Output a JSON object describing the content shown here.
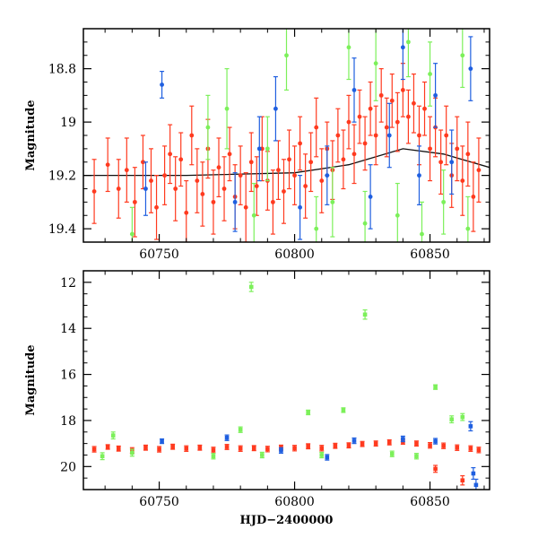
{
  "chart_data": [
    {
      "type": "scatter",
      "panel": "top",
      "xlabel": "",
      "ylabel": "Magnitude",
      "xlim": [
        60722,
        60872
      ],
      "ylim": [
        19.45,
        18.65
      ],
      "y_inverted": true,
      "xticks": [
        60750,
        60800,
        60850
      ],
      "xtick_labels": [
        "60750",
        "60800",
        "60850"
      ],
      "yticks": [
        18.8,
        19,
        19.2,
        19.4
      ],
      "ytick_labels": [
        "18.8",
        "19",
        "19.2",
        "19.4"
      ],
      "grid": false,
      "legend": "none",
      "series": [
        {
          "color": "#ff3a1f",
          "points": [
            [
              60726,
              19.26,
              0.12
            ],
            [
              60731,
              19.16,
              0.1
            ],
            [
              60735,
              19.25,
              0.11
            ],
            [
              60738,
              19.18,
              0.12
            ],
            [
              60741,
              19.3,
              0.13
            ],
            [
              60744,
              19.15,
              0.1
            ],
            [
              60747,
              19.22,
              0.12
            ],
            [
              60749,
              19.32,
              0.12
            ],
            [
              60752,
              19.2,
              0.11
            ],
            [
              60754,
              19.12,
              0.11
            ],
            [
              60756,
              19.25,
              0.12
            ],
            [
              60758,
              19.14,
              0.1
            ],
            [
              60760,
              19.34,
              0.12
            ],
            [
              60762,
              19.05,
              0.11
            ],
            [
              60764,
              19.22,
              0.12
            ],
            [
              60766,
              19.27,
              0.12
            ],
            [
              60768,
              19.1,
              0.11
            ],
            [
              60770,
              19.3,
              0.12
            ],
            [
              60772,
              19.17,
              0.11
            ],
            [
              60774,
              19.25,
              0.12
            ],
            [
              60776,
              19.12,
              0.1
            ],
            [
              60778,
              19.28,
              0.12
            ],
            [
              60780,
              19.2,
              0.11
            ],
            [
              60782,
              19.32,
              0.13
            ],
            [
              60784,
              19.15,
              0.11
            ],
            [
              60786,
              19.24,
              0.11
            ],
            [
              60788,
              19.1,
              0.12
            ],
            [
              60790,
              19.22,
              0.11
            ],
            [
              60792,
              19.3,
              0.12
            ],
            [
              60794,
              19.18,
              0.11
            ],
            [
              60796,
              19.26,
              0.12
            ],
            [
              60798,
              19.14,
              0.11
            ],
            [
              60800,
              19.2,
              0.11
            ],
            [
              60802,
              19.08,
              0.1
            ],
            [
              60804,
              19.24,
              0.12
            ],
            [
              60806,
              19.15,
              0.11
            ],
            [
              60808,
              19.02,
              0.11
            ],
            [
              60810,
              19.22,
              0.12
            ],
            [
              60812,
              19.1,
              0.1
            ],
            [
              60814,
              19.18,
              0.11
            ],
            [
              60816,
              19.05,
              0.1
            ],
            [
              60818,
              19.14,
              0.11
            ],
            [
              60820,
              19.0,
              0.1
            ],
            [
              60822,
              19.12,
              0.11
            ],
            [
              60824,
              18.98,
              0.1
            ],
            [
              60826,
              19.08,
              0.1
            ],
            [
              60828,
              18.95,
              0.1
            ],
            [
              60830,
              19.05,
              0.11
            ],
            [
              60832,
              18.9,
              0.1
            ],
            [
              60834,
              19.02,
              0.11
            ],
            [
              60836,
              18.92,
              0.1
            ],
            [
              60838,
              19.0,
              0.11
            ],
            [
              60840,
              18.88,
              0.1
            ],
            [
              60842,
              18.98,
              0.1
            ],
            [
              60844,
              18.93,
              0.11
            ],
            [
              60846,
              19.05,
              0.11
            ],
            [
              60848,
              18.95,
              0.1
            ],
            [
              60850,
              19.1,
              0.12
            ],
            [
              60852,
              19.02,
              0.11
            ],
            [
              60854,
              19.15,
              0.12
            ],
            [
              60856,
              19.05,
              0.11
            ],
            [
              60858,
              19.2,
              0.12
            ],
            [
              60860,
              19.1,
              0.12
            ],
            [
              60862,
              19.22,
              0.13
            ],
            [
              60864,
              19.12,
              0.12
            ],
            [
              60866,
              19.28,
              0.13
            ],
            [
              60868,
              19.18,
              0.12
            ]
          ]
        },
        {
          "color": "#7cf05a",
          "points": [
            [
              60740,
              19.42,
              0.1
            ],
            [
              60768,
              19.02,
              0.12
            ],
            [
              60775,
              18.95,
              0.15
            ],
            [
              60785,
              19.35,
              0.12
            ],
            [
              60790,
              19.1,
              0.12
            ],
            [
              60797,
              18.75,
              0.13
            ],
            [
              60808,
              19.4,
              0.12
            ],
            [
              60814,
              19.3,
              0.13
            ],
            [
              60820,
              18.72,
              0.12
            ],
            [
              60826,
              19.38,
              0.12
            ],
            [
              60830,
              18.78,
              0.14
            ],
            [
              60838,
              19.35,
              0.12
            ],
            [
              60842,
              18.7,
              0.13
            ],
            [
              60847,
              19.42,
              0.12
            ],
            [
              60850,
              18.82,
              0.12
            ],
            [
              60855,
              19.3,
              0.12
            ],
            [
              60862,
              18.75,
              0.12
            ],
            [
              60864,
              19.4,
              0.12
            ]
          ]
        },
        {
          "color": "#1f5fe0",
          "points": [
            [
              60751,
              18.86,
              0.05
            ],
            [
              60745,
              19.25,
              0.1
            ],
            [
              60778,
              19.3,
              0.11
            ],
            [
              60787,
              19.1,
              0.12
            ],
            [
              60793,
              18.95,
              0.12
            ],
            [
              60802,
              19.32,
              0.12
            ],
            [
              60812,
              19.2,
              0.11
            ],
            [
              60822,
              18.88,
              0.12
            ],
            [
              60828,
              19.28,
              0.12
            ],
            [
              60835,
              19.05,
              0.12
            ],
            [
              60840,
              18.72,
              0.12
            ],
            [
              60846,
              19.2,
              0.11
            ],
            [
              60852,
              18.9,
              0.12
            ],
            [
              60858,
              19.15,
              0.12
            ],
            [
              60865,
              18.8,
              0.12
            ]
          ]
        }
      ],
      "trend": {
        "color": "#111111",
        "points": [
          [
            60722,
            19.2
          ],
          [
            60760,
            19.2
          ],
          [
            60800,
            19.19
          ],
          [
            60820,
            19.16
          ],
          [
            60840,
            19.1
          ],
          [
            60855,
            19.12
          ],
          [
            60872,
            19.17
          ]
        ]
      }
    },
    {
      "type": "scatter",
      "panel": "bottom",
      "xlabel": "HJD−2400000",
      "ylabel": "Magnitude",
      "xlim": [
        60722,
        60872
      ],
      "ylim": [
        21.0,
        11.5
      ],
      "y_inverted": true,
      "xticks": [
        60750,
        60800,
        60850
      ],
      "xtick_labels": [
        "60750",
        "60800",
        "60850"
      ],
      "yticks": [
        12,
        14,
        16,
        18,
        20
      ],
      "ytick_labels": [
        "12",
        "14",
        "16",
        "18",
        "20"
      ],
      "grid": false,
      "legend": "none",
      "series": [
        {
          "color": "#ff3a1f",
          "points": [
            [
              60726,
              19.25,
              0.12
            ],
            [
              60731,
              19.15,
              0.1
            ],
            [
              60735,
              19.22,
              0.11
            ],
            [
              60740,
              19.3,
              0.12
            ],
            [
              60745,
              19.18,
              0.11
            ],
            [
              60750,
              19.25,
              0.12
            ],
            [
              60755,
              19.14,
              0.11
            ],
            [
              60760,
              19.22,
              0.12
            ],
            [
              60765,
              19.18,
              0.11
            ],
            [
              60770,
              19.28,
              0.12
            ],
            [
              60775,
              19.15,
              0.11
            ],
            [
              60780,
              19.22,
              0.12
            ],
            [
              60785,
              19.2,
              0.11
            ],
            [
              60790,
              19.24,
              0.12
            ],
            [
              60795,
              19.18,
              0.11
            ],
            [
              60800,
              19.2,
              0.12
            ],
            [
              60805,
              19.12,
              0.11
            ],
            [
              60810,
              19.2,
              0.12
            ],
            [
              60815,
              19.1,
              0.11
            ],
            [
              60820,
              19.08,
              0.11
            ],
            [
              60825,
              19.02,
              0.11
            ],
            [
              60830,
              19.0,
              0.11
            ],
            [
              60835,
              18.95,
              0.11
            ],
            [
              60840,
              18.92,
              0.11
            ],
            [
              60845,
              19.0,
              0.11
            ],
            [
              60850,
              19.08,
              0.12
            ],
            [
              60852,
              20.1,
              0.15
            ],
            [
              60855,
              19.1,
              0.12
            ],
            [
              60860,
              19.18,
              0.12
            ],
            [
              60862,
              20.6,
              0.2
            ],
            [
              60865,
              19.22,
              0.12
            ],
            [
              60868,
              19.28,
              0.12
            ]
          ]
        },
        {
          "color": "#7cf05a",
          "points": [
            [
              60729,
              19.55,
              0.15
            ],
            [
              60733,
              18.65,
              0.15
            ],
            [
              60740,
              19.4,
              0.15
            ],
            [
              60770,
              19.55,
              0.12
            ],
            [
              60780,
              18.4,
              0.12
            ],
            [
              60784,
              12.2,
              0.2
            ],
            [
              60788,
              19.5,
              0.12
            ],
            [
              60805,
              17.65,
              0.1
            ],
            [
              60810,
              19.5,
              0.12
            ],
            [
              60818,
              17.55,
              0.1
            ],
            [
              60826,
              13.4,
              0.2
            ],
            [
              60836,
              19.45,
              0.12
            ],
            [
              60845,
              19.55,
              0.12
            ],
            [
              60852,
              16.55,
              0.1
            ],
            [
              60858,
              17.95,
              0.15
            ],
            [
              60862,
              17.85,
              0.15
            ]
          ]
        },
        {
          "color": "#1f5fe0",
          "points": [
            [
              60751,
              18.9,
              0.1
            ],
            [
              60775,
              18.75,
              0.12
            ],
            [
              60795,
              19.3,
              0.12
            ],
            [
              60812,
              19.6,
              0.12
            ],
            [
              60822,
              18.88,
              0.12
            ],
            [
              60840,
              18.8,
              0.12
            ],
            [
              60852,
              18.9,
              0.12
            ],
            [
              60865,
              18.25,
              0.2
            ],
            [
              60866,
              20.3,
              0.25
            ],
            [
              60867,
              20.8,
              0.25
            ]
          ]
        }
      ]
    }
  ]
}
